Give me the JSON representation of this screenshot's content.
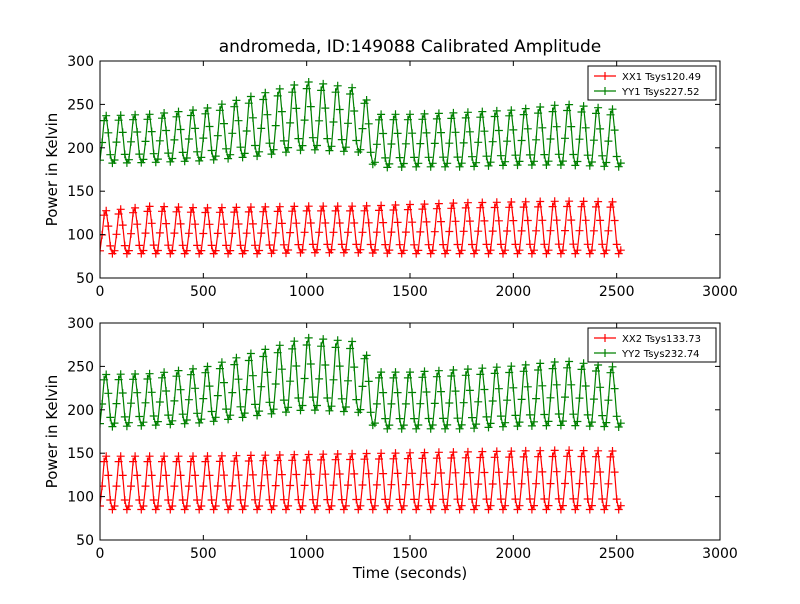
{
  "figure": {
    "title": "andromeda, ID:149088 Calibrated Amplitude",
    "xlabel": "Time (seconds)"
  },
  "chart_data": [
    {
      "type": "line",
      "title": "andromeda, ID:149088 Calibrated Amplitude",
      "xlabel": "",
      "ylabel": "Power in Kelvin",
      "xlim": [
        0,
        3000
      ],
      "ylim": [
        50,
        300
      ],
      "xticks": [
        0,
        500,
        1000,
        1500,
        2000,
        2500,
        3000
      ],
      "yticks": [
        50,
        100,
        150,
        200,
        250,
        300
      ],
      "legend_position": "top-right",
      "marker": "+",
      "cycle_period_s": 70,
      "x_range": [
        0,
        2520
      ],
      "series": [
        {
          "name": "XX1 Tsys120.49",
          "color": "#ff0000",
          "description": "oscillating series sampled every ~10 s",
          "x": [
            0,
            250,
            500,
            750,
            1000,
            1250,
            1500,
            1750,
            2000,
            2250,
            2520
          ],
          "peaks": [
            128,
            134,
            132,
            133,
            134,
            134,
            136,
            138,
            139,
            140,
            139
          ],
          "troughs": [
            78,
            78,
            78,
            78,
            79,
            79,
            78,
            78,
            78,
            78,
            78
          ]
        },
        {
          "name": "YY1 Tsys227.52",
          "color": "#008000",
          "x": [
            0,
            250,
            500,
            750,
            1000,
            1250,
            1340,
            1500,
            1750,
            2000,
            2250,
            2520
          ],
          "peaks": [
            238,
            240,
            246,
            262,
            278,
            270,
            240,
            240,
            242,
            245,
            252,
            245
          ],
          "troughs": [
            182,
            183,
            185,
            190,
            198,
            195,
            177,
            178,
            178,
            180,
            180,
            178
          ]
        }
      ]
    },
    {
      "type": "line",
      "title": "",
      "xlabel": "Time (seconds)",
      "ylabel": "Power in Kelvin",
      "xlim": [
        0,
        3000
      ],
      "ylim": [
        50,
        300
      ],
      "xticks": [
        0,
        500,
        1000,
        1500,
        2000,
        2500,
        3000
      ],
      "yticks": [
        50,
        100,
        150,
        200,
        250,
        300
      ],
      "legend_position": "top-right",
      "marker": "+",
      "cycle_period_s": 70,
      "x_range": [
        0,
        2520
      ],
      "series": [
        {
          "name": "XX2 Tsys133.73",
          "color": "#ff0000",
          "x": [
            0,
            250,
            500,
            750,
            1000,
            1250,
            1500,
            1750,
            2000,
            2250,
            2520
          ],
          "peaks": [
            148,
            148,
            148,
            149,
            150,
            151,
            152,
            153,
            154,
            155,
            154
          ],
          "troughs": [
            85,
            85,
            85,
            85,
            85,
            85,
            85,
            85,
            85,
            85,
            85
          ]
        },
        {
          "name": "YY2 Tsys232.74",
          "color": "#008000",
          "x": [
            0,
            250,
            500,
            750,
            1000,
            1250,
            1340,
            1500,
            1750,
            2000,
            2250,
            2520
          ],
          "peaks": [
            242,
            243,
            250,
            268,
            285,
            280,
            245,
            245,
            248,
            252,
            258,
            250
          ],
          "troughs": [
            180,
            182,
            185,
            193,
            200,
            197,
            178,
            178,
            178,
            181,
            182,
            180
          ]
        }
      ]
    }
  ]
}
